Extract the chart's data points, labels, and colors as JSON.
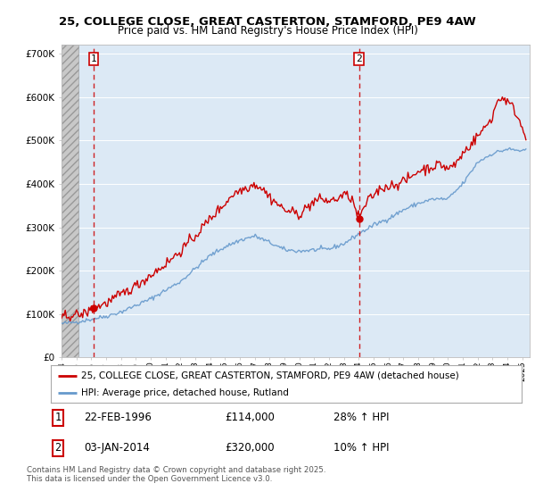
{
  "title_line1": "25, COLLEGE CLOSE, GREAT CASTERTON, STAMFORD, PE9 4AW",
  "title_line2": "Price paid vs. HM Land Registry's House Price Index (HPI)",
  "xlim_start": 1994.0,
  "xlim_end": 2025.5,
  "ylim_min": 0,
  "ylim_max": 720000,
  "yticks": [
    0,
    100000,
    200000,
    300000,
    400000,
    500000,
    600000,
    700000
  ],
  "ytick_labels": [
    "£0",
    "£100K",
    "£200K",
    "£300K",
    "£400K",
    "£500K",
    "£600K",
    "£700K"
  ],
  "hatch_region_end": 1995.15,
  "sale1_x": 1996.14,
  "sale1_y": 114000,
  "sale1_label": "1",
  "sale1_date": "22-FEB-1996",
  "sale1_price": "£114,000",
  "sale1_hpi": "28% ↑ HPI",
  "sale2_x": 2014.01,
  "sale2_y": 320000,
  "sale2_label": "2",
  "sale2_date": "03-JAN-2014",
  "sale2_price": "£320,000",
  "sale2_hpi": "10% ↑ HPI",
  "legend_line1": "25, COLLEGE CLOSE, GREAT CASTERTON, STAMFORD, PE9 4AW (detached house)",
  "legend_line2": "HPI: Average price, detached house, Rutland",
  "footnote": "Contains HM Land Registry data © Crown copyright and database right 2025.\nThis data is licensed under the Open Government Licence v3.0.",
  "price_color": "#cc0000",
  "hpi_color": "#6699cc",
  "background_color": "#ffffff",
  "plot_bg_color": "#dce9f5",
  "hatch_color": "#c8c8c8"
}
